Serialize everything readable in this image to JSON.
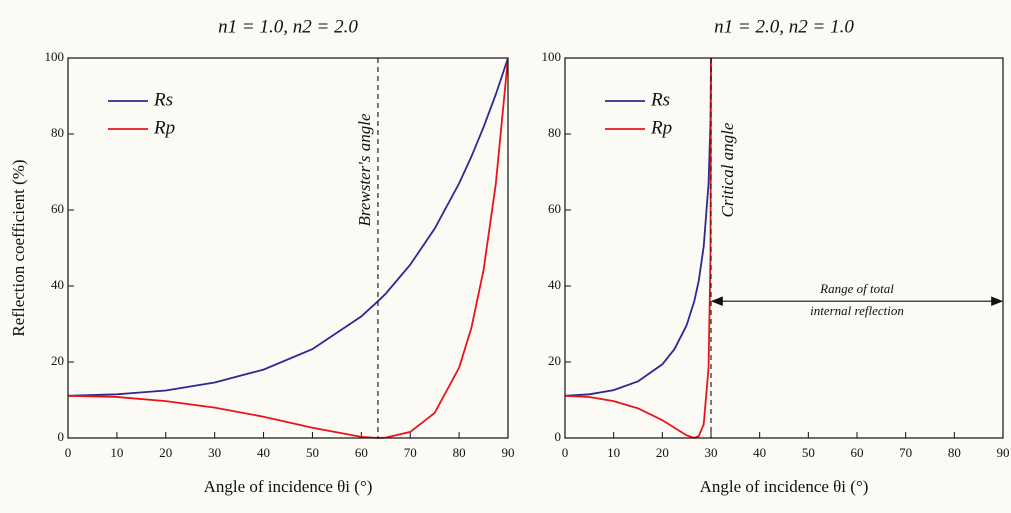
{
  "chart_data": [
    {
      "type": "line",
      "title": "n1 = 1.0,  n2 = 2.0",
      "x_label": "Angle of incidence θi (°)",
      "y_label": "Reflection coefficient (%)",
      "x": [
        0,
        10,
        20,
        30,
        40,
        50,
        60,
        63.4,
        65,
        70,
        75,
        80,
        82.5,
        85,
        87.5,
        90
      ],
      "series": [
        {
          "name": "Rs",
          "color": "#2b2a93",
          "values": [
            11.1,
            11.5,
            12.5,
            14.6,
            18.0,
            23.4,
            32.0,
            36.0,
            38.0,
            45.6,
            55.1,
            67.0,
            74.0,
            81.8,
            90.4,
            100
          ]
        },
        {
          "name": "Rp",
          "color": "#e8141c",
          "values": [
            11.1,
            10.8,
            9.7,
            8.0,
            5.6,
            2.7,
            0.3,
            0,
            0.1,
            1.6,
            6.6,
            18.5,
            28.9,
            44.2,
            66.8,
            100
          ]
        }
      ],
      "xlim": [
        0,
        90
      ],
      "ylim": [
        0,
        100
      ],
      "xticks": [
        0,
        10,
        20,
        30,
        40,
        50,
        60,
        70,
        80,
        90
      ],
      "yticks": [
        0,
        20,
        40,
        60,
        80,
        100
      ],
      "legend": "upper left",
      "annotations": [
        {
          "text": "Brewster's angle",
          "x": 63.4
        }
      ]
    },
    {
      "type": "line",
      "title": "n1 = 2.0,  n2 = 1.0",
      "x_label": "Angle of incidence θi (°)",
      "x": [
        0,
        5,
        10,
        15,
        20,
        22.5,
        25,
        26.57,
        27.5,
        28.5,
        29.5,
        29.9,
        30
      ],
      "series": [
        {
          "name": "Rs",
          "color": "#2b2a93",
          "values": [
            11.1,
            11.5,
            12.6,
            14.9,
            19.4,
            23.4,
            29.7,
            36.0,
            41.5,
            50.4,
            67.0,
            83.6,
            100
          ]
        },
        {
          "name": "Rp",
          "color": "#e8141c",
          "values": [
            11.1,
            10.8,
            9.7,
            7.8,
            4.7,
            2.7,
            0.7,
            0,
            0.5,
            3.6,
            18.5,
            48.5,
            100
          ]
        }
      ],
      "xlim": [
        0,
        90
      ],
      "ylim": [
        0,
        100
      ],
      "xticks": [
        0,
        10,
        20,
        30,
        40,
        50,
        60,
        70,
        80,
        90
      ],
      "yticks": [
        0,
        20,
        40,
        60,
        80,
        100
      ],
      "legend": "upper left",
      "annotations": [
        {
          "text": "Critical angle",
          "x": 30
        }
      ],
      "range_annotation": {
        "lines": [
          "Range of total",
          "internal reflection"
        ],
        "x": [
          30,
          90
        ],
        "y": 36
      }
    }
  ]
}
